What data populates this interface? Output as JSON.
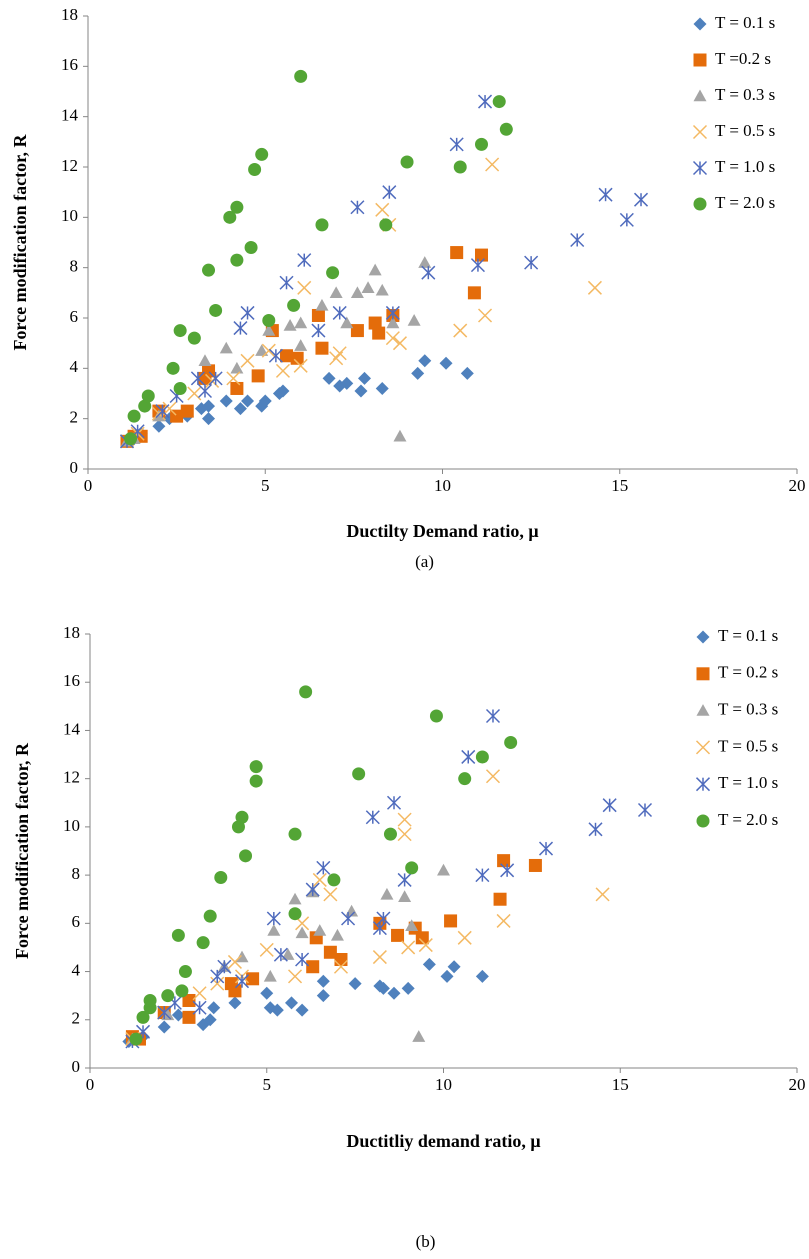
{
  "chart_data": [
    {
      "type": "scatter",
      "caption": "(a)",
      "xlabel": "Ductilty Demand ratio, μ",
      "ylabel": "Force modification factor, R",
      "xlim": [
        0,
        20
      ],
      "ylim": [
        0,
        18
      ],
      "xticks": [
        0,
        5,
        10,
        15,
        20
      ],
      "yticks": [
        0,
        2,
        4,
        6,
        8,
        10,
        12,
        14,
        16,
        18
      ],
      "grid": false,
      "legend": "right",
      "series": [
        {
          "name": "T = 0.1 s",
          "color": "#4f81bd",
          "marker": "diamond",
          "x": [
            1.1,
            1.3,
            1.5,
            2,
            2.3,
            2.8,
            3.2,
            3.4,
            3.4,
            3.9,
            4.3,
            4.5,
            4.9,
            5,
            5.4,
            5.5,
            6.8,
            7.1,
            7.3,
            7.7,
            7.8,
            8.3,
            9.3,
            9.5,
            10.1,
            10.7
          ],
          "values": [
            1.1,
            1.2,
            1.4,
            1.7,
            2.0,
            2.1,
            2.4,
            2.0,
            2.5,
            2.7,
            2.4,
            2.7,
            2.5,
            2.7,
            3.0,
            3.1,
            3.6,
            3.3,
            3.4,
            3.1,
            3.6,
            3.2,
            3.8,
            4.3,
            4.2,
            3.8
          ]
        },
        {
          "name": "T =0.2 s",
          "color": "#e46c0a",
          "marker": "square",
          "x": [
            1.1,
            1.3,
            1.5,
            2,
            2.5,
            2.8,
            3.3,
            3.4,
            4.2,
            4.8,
            5.2,
            5.6,
            5.9,
            6.5,
            6.6,
            7.6,
            8.1,
            8.2,
            8.6,
            10.4,
            10.9,
            11.1
          ],
          "values": [
            1.1,
            1.3,
            1.3,
            2.3,
            2.1,
            2.3,
            3.6,
            3.9,
            3.2,
            3.7,
            5.5,
            4.5,
            4.4,
            6.1,
            4.8,
            5.5,
            5.8,
            5.4,
            6.1,
            8.6,
            7.0,
            8.5
          ]
        },
        {
          "name": "T = 0.3 s",
          "color": "#a5a5a5",
          "marker": "triangle",
          "x": [
            1.1,
            1.3,
            2,
            3.3,
            3.9,
            4.2,
            4.9,
            5.1,
            5.7,
            6,
            6,
            6.6,
            7,
            7.3,
            7.6,
            7.9,
            8.1,
            8.3,
            8.6,
            8.8,
            9.2,
            9.5
          ],
          "values": [
            1.1,
            1.2,
            2.1,
            4.3,
            4.8,
            4.0,
            4.7,
            5.5,
            5.7,
            4.9,
            5.8,
            6.5,
            7.0,
            5.8,
            7.0,
            7.2,
            7.9,
            7.1,
            5.8,
            1.3,
            5.9,
            8.2
          ]
        },
        {
          "name": "T = 0.5 s",
          "color": "#f4b963",
          "marker": "x",
          "x": [
            1.1,
            1.4,
            2,
            2.3,
            3,
            3.5,
            4.1,
            4.5,
            5.1,
            5.5,
            6,
            6.1,
            7,
            7.1,
            8.3,
            8.5,
            8.6,
            8.8,
            10.5,
            11.2,
            11.4,
            14.3
          ],
          "values": [
            1.1,
            1.4,
            2.2,
            2.4,
            3.0,
            3.5,
            3.6,
            4.3,
            4.7,
            3.9,
            4.1,
            7.2,
            4.4,
            4.6,
            10.3,
            9.7,
            5.2,
            5.0,
            5.5,
            6.1,
            12.1,
            7.2
          ]
        },
        {
          "name": "T = 1.0 s",
          "color": "#4f6bbd",
          "marker": "asterisk",
          "x": [
            1.1,
            1.4,
            2.1,
            2.5,
            3.1,
            3.3,
            3.6,
            4.3,
            4.5,
            5.3,
            5.6,
            6.1,
            6.5,
            7.1,
            7.6,
            8.5,
            8.6,
            9.6,
            10.4,
            11,
            11.2,
            12.5,
            13.8,
            14.6,
            15.2,
            15.6
          ],
          "values": [
            1.1,
            1.5,
            2.3,
            2.9,
            3.6,
            3.1,
            3.6,
            5.6,
            6.2,
            4.5,
            7.4,
            8.3,
            5.5,
            6.2,
            10.4,
            11.0,
            6.2,
            7.8,
            12.9,
            8.1,
            14.6,
            8.2,
            9.1,
            10.9,
            9.9,
            10.7
          ]
        },
        {
          "name": "T = 2.0 s",
          "color": "#53a535",
          "marker": "circle",
          "x": [
            1.2,
            1.3,
            1.6,
            1.7,
            2.4,
            2.6,
            2.6,
            3,
            3.4,
            3.6,
            4,
            4.2,
            4.2,
            4.6,
            4.7,
            4.9,
            5.1,
            5.8,
            6,
            6.6,
            6.9,
            8.4,
            9,
            10.5,
            11.1,
            11.6,
            11.8
          ],
          "values": [
            1.2,
            2.1,
            2.5,
            2.9,
            4.0,
            5.5,
            3.2,
            5.2,
            7.9,
            6.3,
            10.0,
            10.4,
            8.3,
            8.8,
            11.9,
            12.5,
            5.9,
            6.5,
            15.6,
            9.7,
            7.8,
            9.7,
            12.2,
            12.0,
            12.9,
            14.6,
            13.5
          ]
        }
      ]
    },
    {
      "type": "scatter",
      "caption": "(b)",
      "xlabel": "Ductitliy demand ratio, μ",
      "ylabel": "Force modification factor, R",
      "xlim": [
        0,
        20
      ],
      "ylim": [
        0,
        18
      ],
      "xticks": [
        0,
        5,
        10,
        15,
        20
      ],
      "yticks": [
        0,
        2,
        4,
        6,
        8,
        10,
        12,
        14,
        16,
        18
      ],
      "grid": false,
      "legend": "right",
      "series": [
        {
          "name": "T = 0.1 s",
          "color": "#4f81bd",
          "marker": "diamond",
          "x": [
            1.1,
            1.5,
            2.1,
            2.5,
            3.2,
            3.4,
            3.5,
            4.1,
            5,
            5.1,
            5.3,
            5.7,
            6,
            6.6,
            6.6,
            7.5,
            8.2,
            8.3,
            8.6,
            9,
            9.6,
            10.1,
            10.3,
            11.1
          ],
          "values": [
            1.1,
            1.3,
            1.7,
            2.2,
            1.8,
            2.0,
            2.5,
            2.7,
            3.1,
            2.5,
            2.4,
            2.7,
            2.4,
            3.0,
            3.6,
            3.5,
            3.4,
            3.3,
            3.1,
            3.3,
            4.3,
            3.8,
            4.2,
            3.8
          ]
        },
        {
          "name": "T = 0.2 s",
          "color": "#e46c0a",
          "marker": "square",
          "x": [
            1.2,
            1.4,
            2.1,
            2.8,
            2.8,
            4,
            4.1,
            4.6,
            6.3,
            6.4,
            6.8,
            7.1,
            8.2,
            8.7,
            9.2,
            9.4,
            10.2,
            11.6,
            11.7,
            12.6
          ],
          "values": [
            1.3,
            1.2,
            2.3,
            2.1,
            2.8,
            3.5,
            3.2,
            3.7,
            4.2,
            5.4,
            4.8,
            4.5,
            6.0,
            5.5,
            5.8,
            5.4,
            6.1,
            7.0,
            8.6,
            8.4
          ]
        },
        {
          "name": "T = 0.3 s",
          "color": "#a5a5a5",
          "marker": "triangle",
          "x": [
            1.2,
            2.2,
            3.8,
            4.3,
            5.1,
            5.2,
            5.6,
            5.8,
            6,
            6.3,
            6.5,
            7,
            7.4,
            8.4,
            8.9,
            9.1,
            9.3,
            10
          ],
          "values": [
            1.2,
            2.2,
            4.2,
            4.6,
            3.8,
            5.7,
            4.7,
            7.0,
            5.6,
            7.3,
            5.7,
            5.5,
            6.5,
            7.2,
            7.1,
            5.9,
            1.3,
            8.2
          ]
        },
        {
          "name": "T = 0.5 s",
          "color": "#f4b963",
          "marker": "x",
          "x": [
            1.2,
            2.1,
            3.1,
            3.6,
            4.1,
            4.3,
            5,
            5.8,
            6,
            6.5,
            6.8,
            7.1,
            8.2,
            8.9,
            8.9,
            9,
            9.5,
            10.6,
            11.4,
            11.7,
            14.5
          ],
          "values": [
            1.2,
            2.3,
            3.1,
            3.5,
            4.4,
            3.8,
            4.9,
            3.8,
            6.0,
            7.8,
            7.2,
            4.2,
            4.6,
            10.3,
            9.7,
            5.0,
            5.1,
            5.4,
            12.1,
            6.1,
            7.2
          ]
        },
        {
          "name": "T = 1.0 s",
          "color": "#4f6bbd",
          "marker": "asterisk",
          "x": [
            1.2,
            1.5,
            2.1,
            2.4,
            3.1,
            3.6,
            3.8,
            4.3,
            5.2,
            5.4,
            6,
            6.3,
            6.6,
            7.3,
            8,
            8.2,
            8.3,
            8.6,
            8.9,
            10.7,
            11.1,
            11.4,
            11.8,
            12.9,
            14.3,
            14.7,
            15.7
          ],
          "values": [
            1.1,
            1.5,
            2.3,
            2.7,
            2.5,
            3.8,
            4.2,
            3.6,
            6.2,
            4.7,
            4.5,
            7.4,
            8.3,
            6.2,
            10.4,
            5.8,
            6.2,
            11.0,
            7.8,
            12.9,
            8.0,
            14.6,
            8.2,
            9.1,
            9.9,
            10.9,
            10.7
          ]
        },
        {
          "name": "T = 2.0 s",
          "color": "#53a535",
          "marker": "circle",
          "x": [
            1.3,
            1.5,
            1.7,
            1.7,
            2.2,
            2.5,
            2.6,
            2.7,
            3.2,
            3.4,
            3.7,
            4.2,
            4.3,
            4.4,
            4.7,
            4.7,
            5.8,
            5.8,
            6.1,
            6.9,
            7.6,
            8.5,
            9.1,
            9.8,
            10.6,
            11.1,
            11.9
          ],
          "values": [
            1.2,
            2.1,
            2.5,
            2.8,
            3.0,
            5.5,
            3.2,
            4.0,
            5.2,
            6.3,
            7.9,
            10.0,
            10.4,
            8.8,
            11.9,
            12.5,
            6.4,
            9.7,
            15.6,
            7.8,
            12.2,
            9.7,
            8.3,
            14.6,
            12.0,
            12.9,
            13.5
          ]
        }
      ]
    }
  ]
}
